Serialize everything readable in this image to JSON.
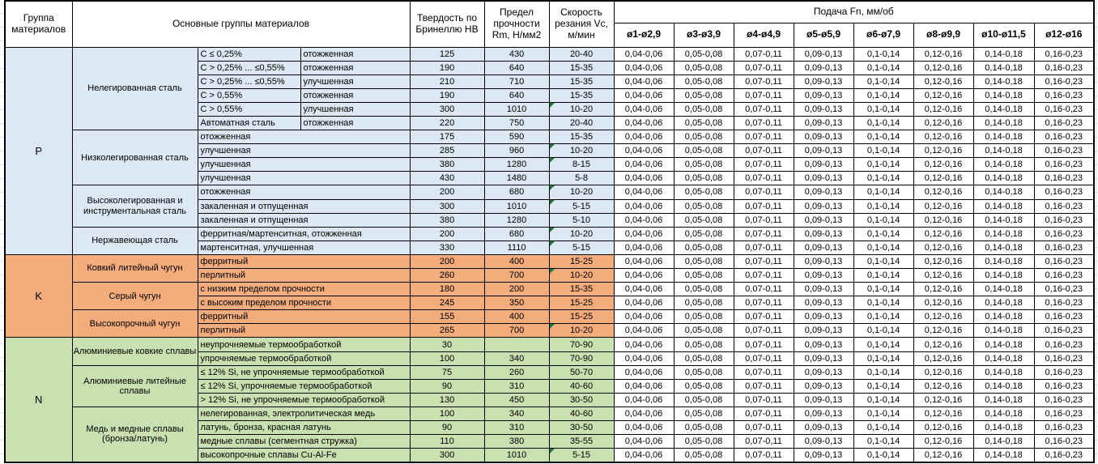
{
  "header": {
    "group_col": "Группа материалов",
    "material_col": "Основные группы материалов",
    "hb_col": "Твердость по Бринеллю HB",
    "rm_col": "Предел прочности Rm, Н/мм2",
    "vc_col": "Скорость резания Vc, м/мин",
    "feed_col": "Подача Fn, мм/об",
    "feed_subcols": [
      "ø1-ø2,9",
      "ø3-ø3,9",
      "ø4-ø4,9",
      "ø5-ø5,9",
      "ø6-ø7,9",
      "ø8-ø9,9",
      "ø10-ø11,5",
      "ø12-ø16"
    ]
  },
  "feed_values": [
    "0,04-0,06",
    "0,05-0,08",
    "0,07-0,11",
    "0,09-0,13",
    "0,1-0,14",
    "0,12-0,16",
    "0,14-0,18",
    "0,16-0,23"
  ],
  "colors": {
    "p": "#DCE8F4",
    "k": "#F4AC7D",
    "n": "#C9E0B0",
    "comment_marker": "#1E7A3C"
  },
  "groups": [
    {
      "letter": "P",
      "color_key": "p",
      "subgroups": [
        {
          "name": "Нелегированная сталь",
          "rows": [
            {
              "split": true,
              "material": "C ≤ 0,25%",
              "state": "отожженная",
              "hb": "125",
              "rm": "430",
              "vc": "20-40",
              "marker": false
            },
            {
              "split": true,
              "material": "C > 0,25% ... ≤0,55%",
              "state": "отожженная",
              "hb": "190",
              "rm": "640",
              "vc": "15-35",
              "marker": false
            },
            {
              "split": true,
              "material": "C > 0,25% ... ≤0,55%",
              "state": "улучшенная",
              "hb": "210",
              "rm": "710",
              "vc": "15-35",
              "marker": false
            },
            {
              "split": true,
              "material": "C > 0,55%",
              "state": "отожженная",
              "hb": "190",
              "rm": "640",
              "vc": "15-35",
              "marker": false
            },
            {
              "split": true,
              "material": "C > 0,55%",
              "state": "улучшенная",
              "hb": "300",
              "rm": "1010",
              "vc": "10-20",
              "marker": true
            },
            {
              "split": true,
              "material": "Автоматная сталь",
              "state": "отожженная",
              "hb": "220",
              "rm": "750",
              "vc": "20-40",
              "marker": false
            }
          ]
        },
        {
          "name": "Низколегированная сталь",
          "rows": [
            {
              "split": false,
              "material": "отожженная",
              "hb": "175",
              "rm": "590",
              "vc": "15-35",
              "marker": false
            },
            {
              "split": false,
              "material": "улучшенная",
              "hb": "285",
              "rm": "960",
              "vc": "10-20",
              "marker": true
            },
            {
              "split": false,
              "material": "улучшенная",
              "hb": "380",
              "rm": "1280",
              "vc": "8-15",
              "marker": true
            },
            {
              "split": false,
              "material": "улучшенная",
              "hb": "430",
              "rm": "1480",
              "vc": "5-8",
              "marker": false
            }
          ]
        },
        {
          "name": "Высоколегированная и инструментальная сталь",
          "rows": [
            {
              "split": false,
              "material": "отожженная",
              "hb": "200",
              "rm": "680",
              "vc": "10-20",
              "marker": true
            },
            {
              "split": false,
              "material": "закаленная и отпущенная",
              "hb": "300",
              "rm": "1010",
              "vc": "5-15",
              "marker": true
            },
            {
              "split": false,
              "material": "закаленная и отпущенная",
              "hb": "380",
              "rm": "1280",
              "vc": "5-10",
              "marker": false
            }
          ]
        },
        {
          "name": "Нержавеющая сталь",
          "rows": [
            {
              "split": false,
              "material": "ферритная/мартенситная, отожженная",
              "hb": "200",
              "rm": "680",
              "vc": "10-20",
              "marker": true
            },
            {
              "split": false,
              "material": "мартенситная, улучшенная",
              "hb": "330",
              "rm": "1110",
              "vc": "5-15",
              "marker": true
            }
          ]
        }
      ]
    },
    {
      "letter": "K",
      "color_key": "k",
      "subgroups": [
        {
          "name": "Ковкий литейный чугун",
          "rows": [
            {
              "split": false,
              "material": "ферритный",
              "hb": "200",
              "rm": "400",
              "vc": "15-25",
              "marker": false
            },
            {
              "split": false,
              "material": "перлитный",
              "hb": "260",
              "rm": "700",
              "vc": "10-20",
              "marker": true
            }
          ]
        },
        {
          "name": "Серый чугун",
          "rows": [
            {
              "split": false,
              "material": "с низким пределом прочности",
              "hb": "180",
              "rm": "200",
              "vc": "15-35",
              "marker": false
            },
            {
              "split": false,
              "material": "с высоким пределом прочности",
              "hb": "245",
              "rm": "350",
              "vc": "15-25",
              "marker": false
            }
          ]
        },
        {
          "name": "Высокопрочный чугун",
          "rows": [
            {
              "split": false,
              "material": "ферритный",
              "hb": "155",
              "rm": "400",
              "vc": "15-25",
              "marker": false
            },
            {
              "split": false,
              "material": "перлитный",
              "hb": "265",
              "rm": "700",
              "vc": "10-20",
              "marker": true
            }
          ]
        }
      ]
    },
    {
      "letter": "N",
      "color_key": "n",
      "subgroups": [
        {
          "name": "Алюминиевые ковкие сплавы",
          "rows": [
            {
              "split": false,
              "material": "неупрочняемые термообработкой",
              "hb": "30",
              "rm": "",
              "vc": "70-90",
              "marker": false
            },
            {
              "split": false,
              "material": "упрочняемые термообработкой",
              "hb": "100",
              "rm": "340",
              "vc": "70-90",
              "marker": false
            }
          ]
        },
        {
          "name": "Алюминиевые литейные сплавы",
          "rows": [
            {
              "split": false,
              "material": "≤ 12% Si, не упрочняемые термообработкой",
              "hb": "75",
              "rm": "260",
              "vc": "50-70",
              "marker": false
            },
            {
              "split": false,
              "material": "≤ 12% Si, упрочняемые термообработкой",
              "hb": "90",
              "rm": "310",
              "vc": "40-60",
              "marker": false
            },
            {
              "split": false,
              "material": "> 12% Si, не упрочняемые термообработкой",
              "hb": "130",
              "rm": "450",
              "vc": "30-50",
              "marker": false
            }
          ]
        },
        {
          "name": "Медь и медные сплавы (бронза/латунь)",
          "rows": [
            {
              "split": false,
              "material": "нелегированная, электролитическая медь",
              "hb": "100",
              "rm": "340",
              "vc": "40-60",
              "marker": false
            },
            {
              "split": false,
              "material": "латунь, бронза, красная латунь",
              "hb": "90",
              "rm": "310",
              "vc": "30-50",
              "marker": false
            },
            {
              "split": false,
              "material": "медные сплавы (сегментная стружка)",
              "hb": "110",
              "rm": "380",
              "vc": "35-55",
              "marker": false
            },
            {
              "split": false,
              "material": "высокопрочные сплавы Cu-Al-Fe",
              "hb": "300",
              "rm": "1010",
              "vc": "5-15",
              "marker": true
            }
          ]
        }
      ]
    }
  ]
}
